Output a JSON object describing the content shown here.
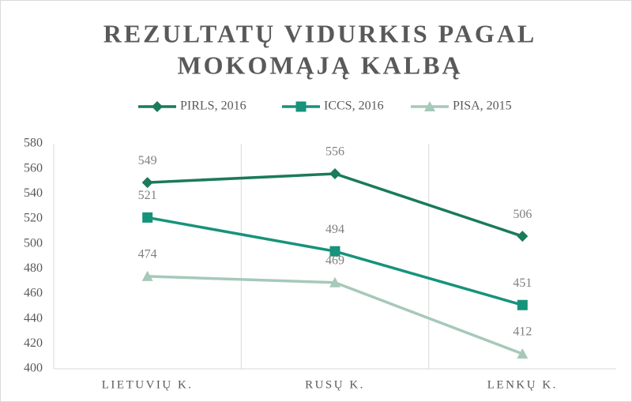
{
  "chart_data": {
    "type": "line",
    "title": [
      "REZULTATŲ VIDURKIS PAGAL",
      "MOKOMĄJĄ KALBĄ"
    ],
    "categories": [
      "LIETUVIŲ K.",
      "RUSŲ K.",
      "LENKŲ K."
    ],
    "series": [
      {
        "name": "PIRLS, 2016",
        "color": "#1b7a5a",
        "marker": "diamond",
        "values": [
          549,
          556,
          506
        ]
      },
      {
        "name": "ICCS, 2016",
        "color": "#16937a",
        "marker": "square",
        "values": [
          521,
          494,
          451
        ]
      },
      {
        "name": "PISA, 2015",
        "color": "#a6c9b9",
        "marker": "triangle",
        "values": [
          474,
          469,
          412
        ]
      }
    ],
    "ylim": [
      400,
      580
    ],
    "yticks": [
      400,
      420,
      440,
      460,
      480,
      500,
      520,
      540,
      560,
      580
    ],
    "legend": "top",
    "data_labels": true
  }
}
